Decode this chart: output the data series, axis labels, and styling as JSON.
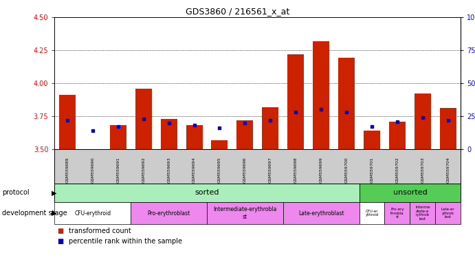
{
  "title": "GDS3860 / 216561_x_at",
  "samples": [
    "GSM559689",
    "GSM559690",
    "GSM559691",
    "GSM559692",
    "GSM559693",
    "GSM559694",
    "GSM559695",
    "GSM559696",
    "GSM559697",
    "GSM559698",
    "GSM559699",
    "GSM559700",
    "GSM559701",
    "GSM559702",
    "GSM559703",
    "GSM559704"
  ],
  "transformed_count": [
    3.91,
    3.5,
    3.68,
    3.96,
    3.73,
    3.68,
    3.57,
    3.72,
    3.82,
    4.22,
    4.32,
    4.19,
    3.64,
    3.71,
    3.92,
    3.81
  ],
  "percentile_rank": [
    22,
    14,
    17,
    23,
    20,
    18,
    16,
    20,
    22,
    28,
    30,
    28,
    17,
    21,
    24,
    22
  ],
  "ylim_left": [
    3.5,
    4.5
  ],
  "ylim_right": [
    0,
    100
  ],
  "yticks_left": [
    3.5,
    3.75,
    4.0,
    4.25,
    4.5
  ],
  "yticks_right": [
    0,
    25,
    50,
    75,
    100
  ],
  "grid_lines": [
    3.75,
    4.0,
    4.25
  ],
  "bar_color": "#cc2200",
  "dot_color": "#0000cc",
  "protocol_color_sorted": "#aaeebb",
  "protocol_color_unsorted": "#55cc55",
  "stage_colors": {
    "CFU-erythroid": "#ffffff",
    "Pro-erythroblast": "#ee88ee",
    "Intermediate-erythroblast": "#ee88ee",
    "Late-erythroblast": "#ee88ee"
  },
  "sorted_stages": [
    {
      "label": "CFU-erythroid",
      "start": 0,
      "end": 2
    },
    {
      "label": "Pro-erythroblast",
      "start": 3,
      "end": 5
    },
    {
      "label": "Intermediate-erythroblast",
      "start": 6,
      "end": 8
    },
    {
      "label": "Late-erythroblast",
      "start": 9,
      "end": 11
    }
  ],
  "unsorted_stages": [
    {
      "label": "CFU-er\nythroid",
      "start": 12,
      "end": 12,
      "color": "#ffffff"
    },
    {
      "label": "Pro-ery\nthrobla\nst",
      "start": 13,
      "end": 13,
      "color": "#ee88ee"
    },
    {
      "label": "Interme\ndiate-e\nrythrob\nlast",
      "start": 14,
      "end": 14,
      "color": "#ee88ee"
    },
    {
      "label": "Late-er\nythrob\nlast",
      "start": 15,
      "end": 15,
      "color": "#ee88ee"
    }
  ],
  "legend_red_label": "transformed count",
  "legend_blue_label": "percentile rank within the sample",
  "xtick_bg": "#cccccc"
}
